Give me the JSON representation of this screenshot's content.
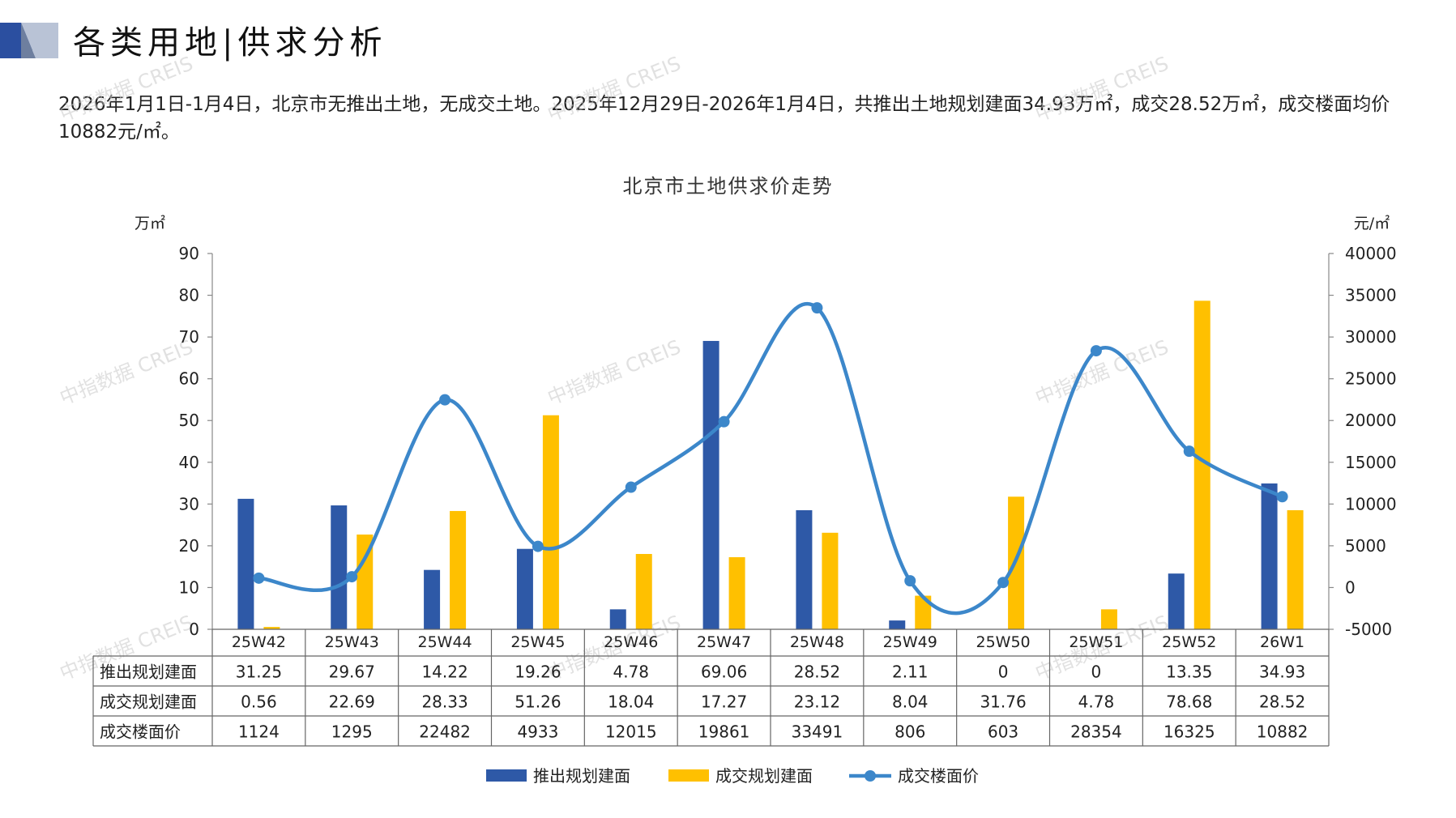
{
  "page": {
    "title": "各类用地|供求分析",
    "summary": "2026年1月1日-1月4日，北京市无推出土地，无成交土地。2025年12月29日-2026年1月4日，共推出土地规划建面34.93万㎡，成交28.52万㎡，成交楼面均价10882元/㎡。",
    "watermark": "中指数据 CREIS"
  },
  "colors": {
    "supply": "#2E59A7",
    "transaction": "#FFC000",
    "price": "#3C87CA",
    "header_dark": "#2B4FA0",
    "header_light": "#B9C3D6"
  },
  "chart_data": {
    "type": "bar",
    "title": "北京市土地供求价走势",
    "ylabel_left": "万㎡",
    "ylabel_right": "元/㎡",
    "ylim_left": [
      0,
      90
    ],
    "ylim_right": [
      -5000,
      40000
    ],
    "yticks_left": [
      0,
      10,
      20,
      30,
      40,
      50,
      60,
      70,
      80,
      90
    ],
    "yticks_right": [
      -5000,
      0,
      5000,
      10000,
      15000,
      20000,
      25000,
      30000,
      35000,
      40000
    ],
    "categories": [
      "25W42",
      "25W43",
      "25W44",
      "25W45",
      "25W46",
      "25W47",
      "25W48",
      "25W49",
      "25W50",
      "25W51",
      "25W52",
      "26W1"
    ],
    "series": [
      {
        "name": "推出规划建面",
        "type": "bar",
        "axis": "left",
        "values": [
          31.25,
          29.67,
          14.22,
          19.26,
          4.78,
          69.06,
          28.52,
          2.11,
          0,
          0,
          13.35,
          34.93
        ]
      },
      {
        "name": "成交规划建面",
        "type": "bar",
        "axis": "left",
        "values": [
          0.56,
          22.69,
          28.33,
          51.26,
          18.04,
          17.27,
          23.12,
          8.04,
          31.76,
          4.78,
          78.68,
          28.52
        ]
      },
      {
        "name": "成交楼面价",
        "type": "line",
        "axis": "right",
        "values": [
          1124,
          1295,
          22482,
          4933,
          12015,
          19861,
          33491,
          806,
          603,
          28354,
          16325,
          10882
        ]
      }
    ],
    "table_rows": [
      [
        "推出规划建面",
        "31.25",
        "29.67",
        "14.22",
        "19.26",
        "4.78",
        "69.06",
        "28.52",
        "2.11",
        "0",
        "0",
        "13.35",
        "34.93"
      ],
      [
        "成交规划建面",
        "0.56",
        "22.69",
        "28.33",
        "51.26",
        "18.04",
        "17.27",
        "23.12",
        "8.04",
        "31.76",
        "4.78",
        "78.68",
        "28.52"
      ],
      [
        "成交楼面价",
        "1124",
        "1295",
        "22482",
        "4933",
        "12015",
        "19861",
        "33491",
        "806",
        "603",
        "28354",
        "16325",
        "10882"
      ]
    ],
    "legend_position": "bottom",
    "grid": false
  }
}
